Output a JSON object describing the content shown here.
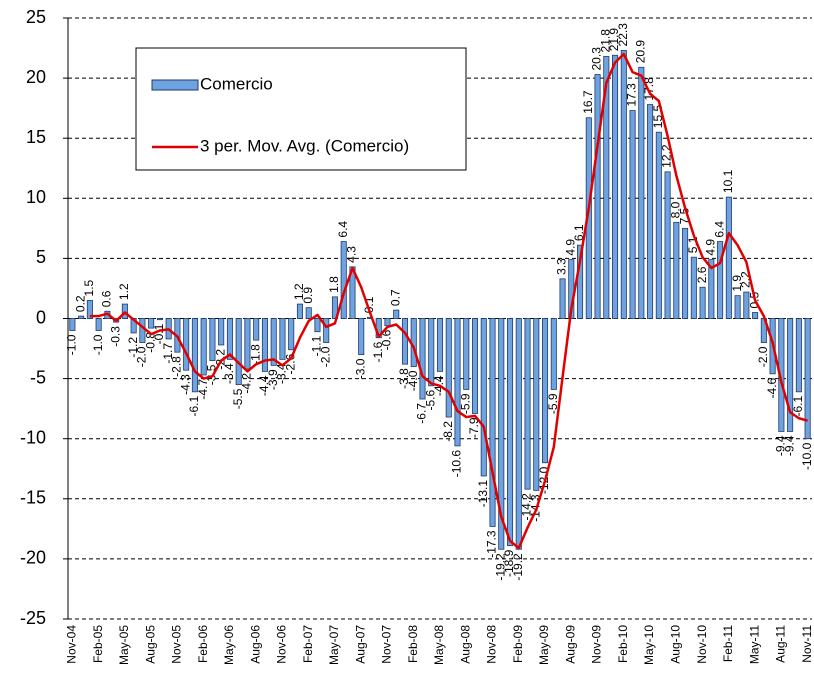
{
  "chart_data": {
    "type": "bar",
    "categories": [
      "Nov-04",
      null,
      null,
      "Feb-05",
      null,
      null,
      "May-05",
      null,
      null,
      "Aug-05",
      null,
      null,
      "Nov-05",
      null,
      null,
      "Feb-06",
      null,
      null,
      "May-06",
      null,
      null,
      "Aug-06",
      null,
      null,
      "Nov-06",
      null,
      null,
      "Feb-07",
      null,
      null,
      "May-07",
      null,
      null,
      "Aug-07",
      null,
      null,
      "Nov-07",
      null,
      null,
      "Feb-08",
      null,
      null,
      "May-08",
      null,
      null,
      "Aug-08",
      null,
      null,
      "Nov-08",
      null,
      null,
      "Feb-09",
      null,
      null,
      "May-09",
      null,
      null,
      "Aug-09",
      null,
      null,
      "Nov-09",
      null,
      null,
      "Feb-10",
      null,
      null,
      "May-10",
      null,
      null,
      "Aug-10",
      null,
      null,
      "Nov-10",
      null,
      null,
      "Feb-11",
      null,
      null,
      "May-11",
      null,
      null,
      "Aug-11",
      null,
      null,
      "Nov-11"
    ],
    "series": [
      {
        "name": "Comercio",
        "color": "#6fa3e0",
        "values": [
          -1.0,
          0.2,
          1.5,
          -1.0,
          0.6,
          -0.3,
          1.2,
          -1.2,
          -2.0,
          -0.8,
          -0.1,
          -1.7,
          -2.8,
          -4.3,
          -6.1,
          -4.7,
          -3.5,
          -2.2,
          -3.4,
          -5.5,
          -4.2,
          -1.8,
          -4.4,
          -3.9,
          -3.4,
          -2.6,
          1.2,
          0.9,
          -1.1,
          -2.0,
          1.8,
          6.4,
          4.3,
          -3.0,
          0.1,
          -1.6,
          -0.6,
          0.7,
          -3.8,
          -4.0,
          -6.7,
          -5.6,
          -4.4,
          -8.2,
          -10.6,
          -5.9,
          -7.9,
          -13.1,
          -17.3,
          -19.2,
          -18.9,
          -19.2,
          -14.2,
          -14.3,
          -12.0,
          -5.9,
          3.3,
          4.9,
          6.1,
          16.7,
          20.3,
          21.8,
          21.9,
          22.3,
          17.3,
          20.9,
          17.8,
          15.5,
          12.2,
          8.0,
          7.5,
          5.1,
          2.6,
          4.9,
          6.4,
          10.1,
          1.9,
          2.2,
          0.5,
          -2.0,
          -4.6,
          -9.4,
          -9.4,
          -6.1,
          -10.0
        ],
        "value_labels": [
          "-1.0",
          "0.2",
          "1.5",
          "-1.0",
          "0.6",
          "-0.3",
          "1.2",
          "-1.2",
          "-2.0",
          "-0.8",
          "-0.1",
          "-1.7",
          "-2.8",
          "-4.3",
          "-6.1",
          "-4.7",
          "-3.5",
          "-2.2",
          "-3.4",
          "-5.5",
          "-4.2",
          "-1.8",
          "-4.4",
          "-3.9",
          "-3.4",
          "-2.6",
          "1.2",
          "0.9",
          "-1.1",
          "-2.0",
          "1.8",
          "6.4",
          "4.3",
          "-3.0",
          "0.1",
          "-1.6",
          "-0.6",
          "0.7",
          "-3.8",
          "-4.0",
          "-6.7",
          "-5.6",
          "-4.4",
          "-8.2",
          "-10.6",
          "-5.9",
          "-7.9",
          "-13.1",
          "-17.3",
          "-19.2",
          "-18.9",
          "-19.2",
          "-14.2",
          "-14.3",
          "-12.0",
          "-5.9",
          "3.3",
          "4.9",
          "6.1",
          "16.7",
          "20.3",
          "21.8",
          "21.9",
          "22.3",
          "17.3",
          "20.9",
          "17.8",
          "15.5",
          "12.2",
          "8.0",
          "7.5",
          "5.1",
          "2.6",
          "4.9",
          "6.4",
          "10.1",
          "1.9",
          "2.2",
          "0.5",
          "-2.0",
          "-4.6",
          "-9.4",
          "-9.4",
          "-6.1",
          "-10.0"
        ]
      },
      {
        "name": "3 per. Mov. Avg. (Comercio)",
        "color": "#e00000",
        "type": "line",
        "values": [
          null,
          null,
          0.2,
          0.2,
          0.4,
          -0.2,
          0.5,
          -0.1,
          -0.7,
          -1.3,
          -1.0,
          -0.9,
          -1.5,
          -2.9,
          -4.4,
          -5.0,
          -4.8,
          -3.5,
          -3.0,
          -3.7,
          -4.4,
          -3.8,
          -3.5,
          -3.4,
          -3.9,
          -3.3,
          -1.6,
          -0.2,
          0.3,
          -0.7,
          -0.4,
          2.1,
          4.2,
          2.6,
          0.5,
          -1.5,
          -0.7,
          -0.5,
          -1.2,
          -2.4,
          -4.8,
          -5.4,
          -5.6,
          -6.1,
          -7.7,
          -8.2,
          -8.1,
          -9.0,
          -12.8,
          -16.5,
          -18.5,
          -19.1,
          -17.4,
          -15.9,
          -13.5,
          -10.7,
          -4.9,
          0.8,
          4.8,
          9.2,
          14.4,
          19.6,
          21.3,
          22.0,
          20.5,
          20.2,
          18.7,
          18.1,
          15.2,
          11.9,
          9.2,
          6.9,
          5.1,
          4.2,
          4.6,
          7.1,
          6.1,
          4.7,
          1.5,
          0.2,
          -2.0,
          -5.3,
          -7.8,
          -8.3,
          -8.5
        ]
      }
    ],
    "ylim": [
      -25,
      25
    ],
    "yticks": [
      -25,
      -20,
      -15,
      -10,
      -5,
      0,
      5,
      10,
      15,
      20,
      25
    ],
    "grid": true,
    "legend": "top-left"
  }
}
